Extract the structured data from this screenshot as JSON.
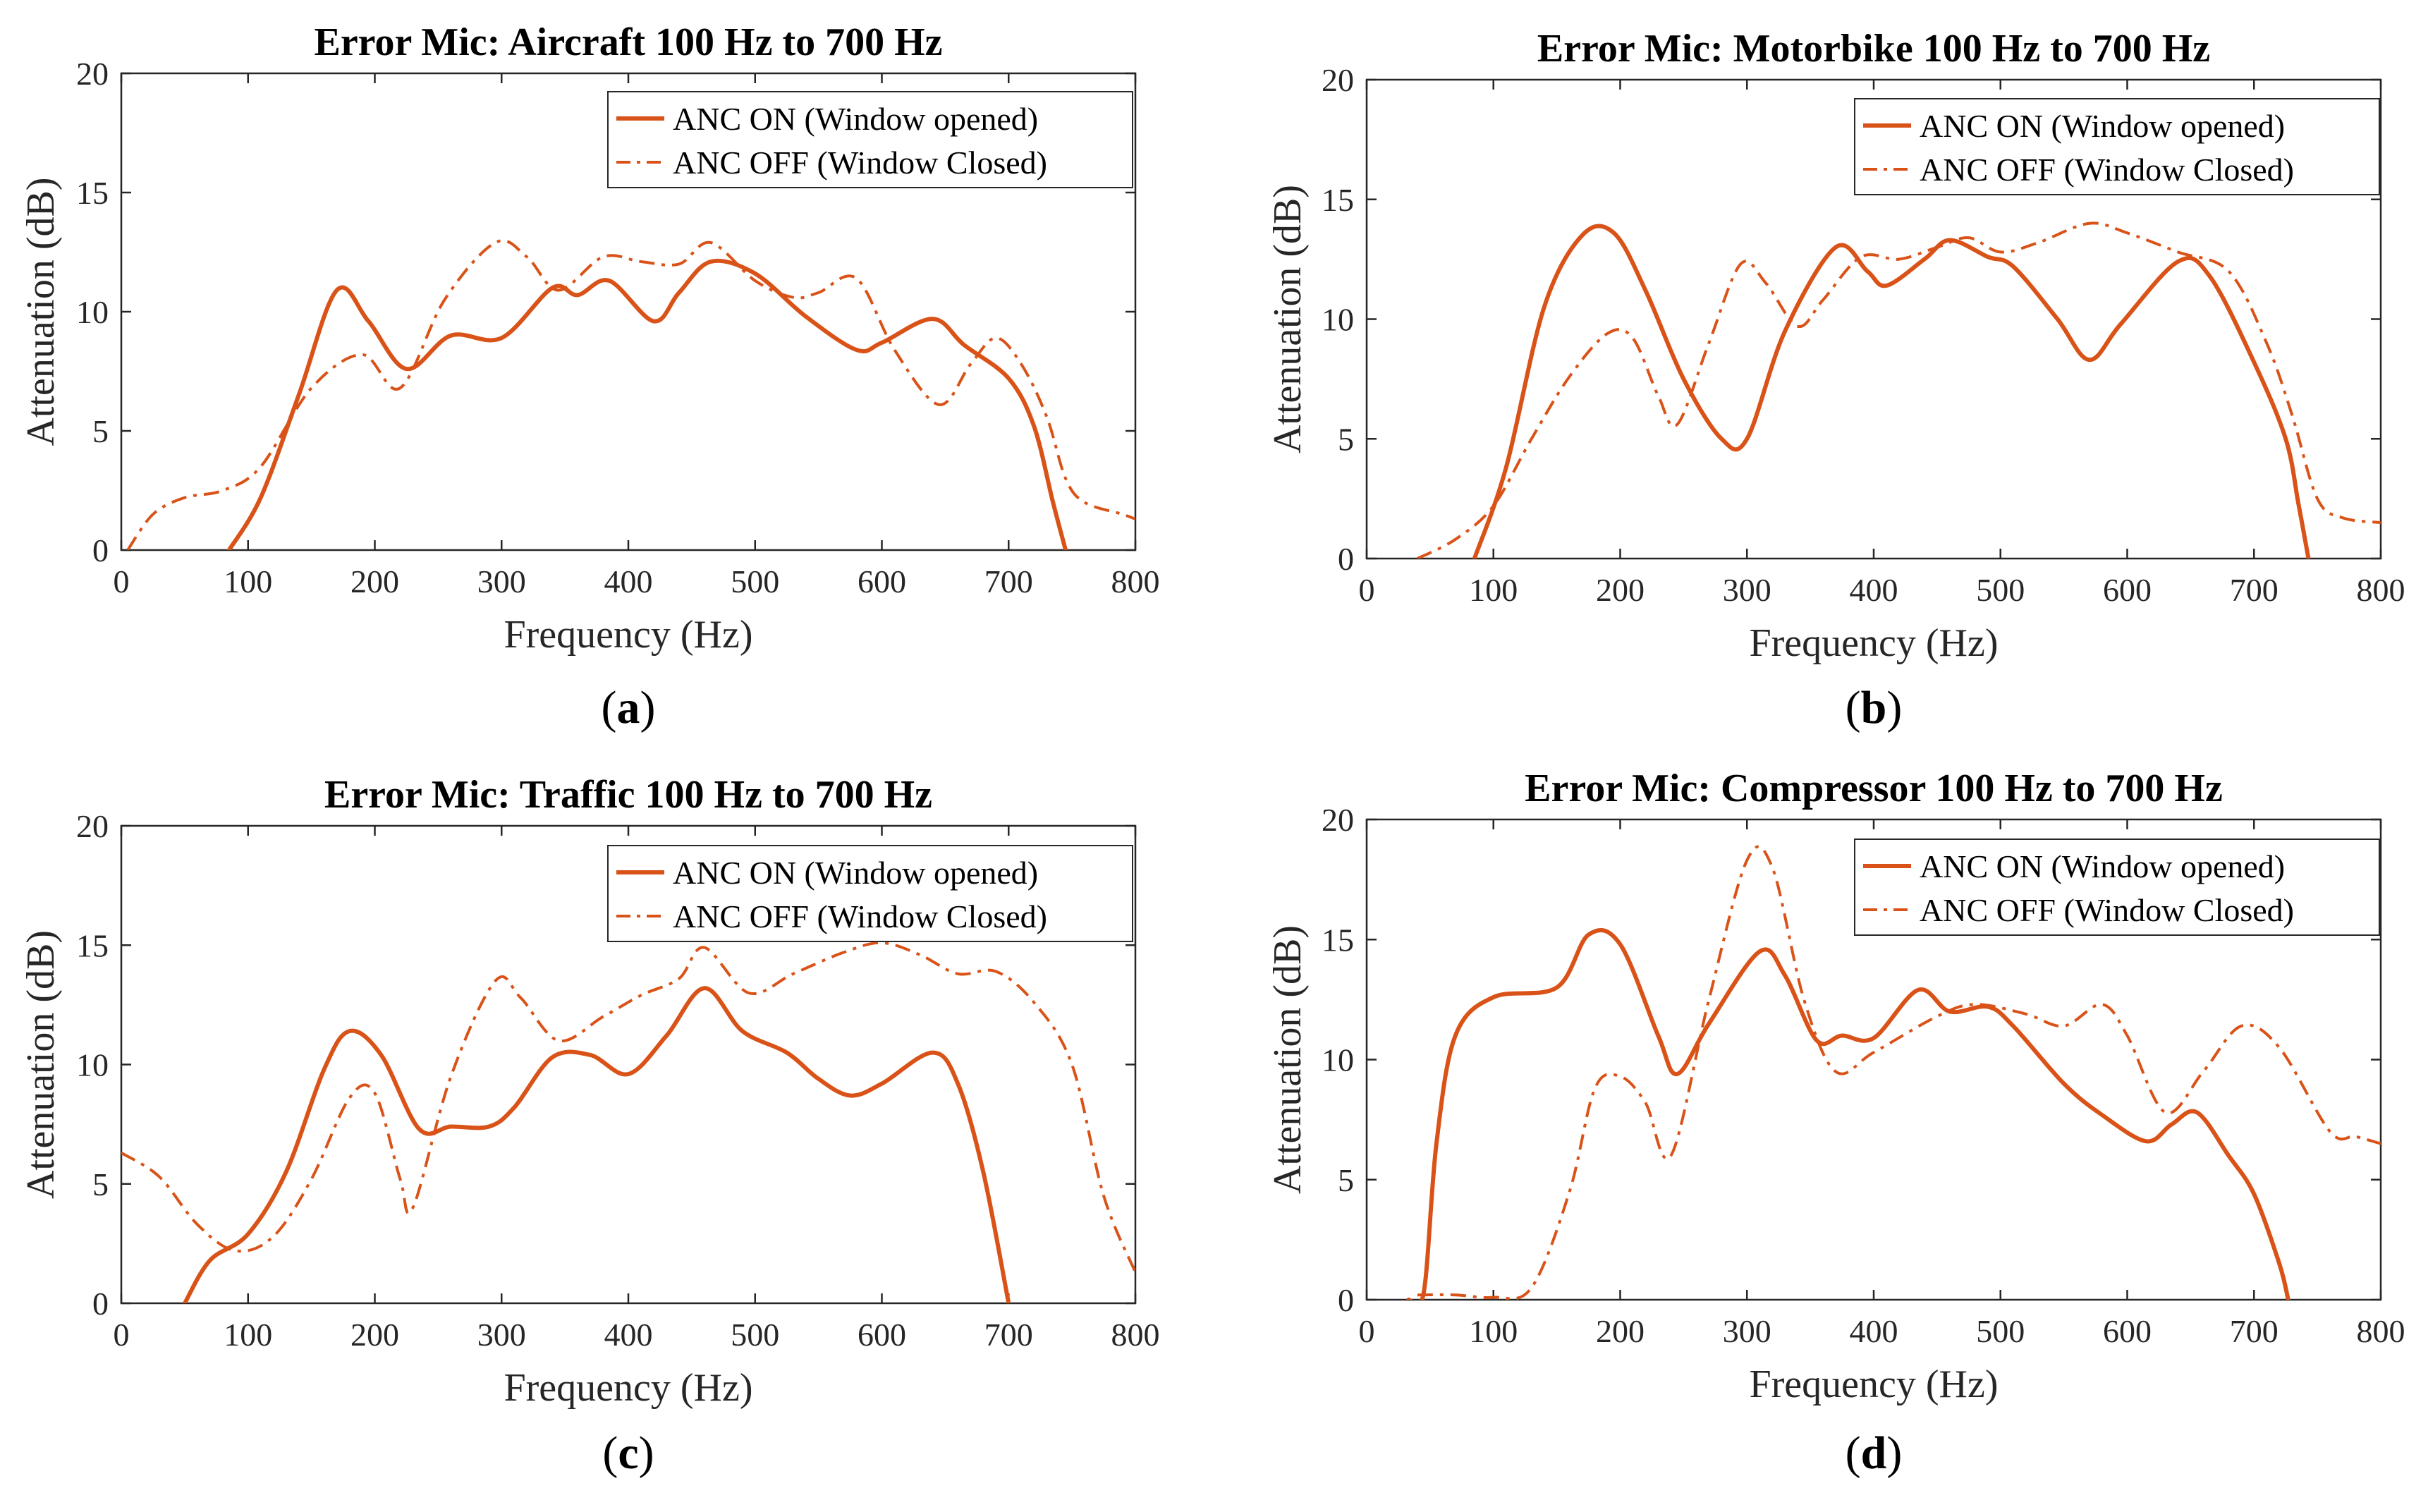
{
  "colors": {
    "series": "#D95319",
    "axis": "#262626",
    "background": "#FFFFFF"
  },
  "chart_data": [
    {
      "type": "line",
      "panel_label": "a",
      "title": "Error Mic: Aircraft 100 Hz to 700 Hz",
      "xlabel": "Frequency (Hz)",
      "ylabel": "Attenuation (dB)",
      "xlim": [
        0,
        800
      ],
      "ylim": [
        0,
        20
      ],
      "xticks": [
        0,
        100,
        200,
        300,
        400,
        500,
        600,
        700,
        800
      ],
      "yticks": [
        0,
        5,
        10,
        15,
        20
      ],
      "legend_position": "top-right",
      "series": [
        {
          "name": "ANC ON (Window opened)",
          "style": "solid",
          "points": [
            [
              85,
              0
            ],
            [
              110,
              2.2
            ],
            [
              140,
              6.5
            ],
            [
              170,
              10.9
            ],
            [
              195,
              9.6
            ],
            [
              225,
              7.6
            ],
            [
              260,
              9
            ],
            [
              300,
              8.9
            ],
            [
              340,
              11
            ],
            [
              360,
              10.7
            ],
            [
              385,
              11.3
            ],
            [
              420,
              9.6
            ],
            [
              440,
              10.8
            ],
            [
              465,
              12.1
            ],
            [
              500,
              11.6
            ],
            [
              540,
              9.8
            ],
            [
              580,
              8.4
            ],
            [
              600,
              8.7
            ],
            [
              640,
              9.7
            ],
            [
              665,
              8.6
            ],
            [
              700,
              7.2
            ],
            [
              720,
              5.2
            ],
            [
              735,
              2
            ],
            [
              745,
              0
            ]
          ]
        },
        {
          "name": "ANC OFF (Window Closed)",
          "style": "dashdot",
          "points": [
            [
              5,
              0
            ],
            [
              25,
              1.5
            ],
            [
              50,
              2.2
            ],
            [
              80,
              2.5
            ],
            [
              110,
              3.5
            ],
            [
              150,
              6.8
            ],
            [
              190,
              8.2
            ],
            [
              220,
              6.8
            ],
            [
              255,
              10.5
            ],
            [
              295,
              12.9
            ],
            [
              320,
              12.3
            ],
            [
              345,
              10.9
            ],
            [
              380,
              12.3
            ],
            [
              410,
              12.1
            ],
            [
              440,
              12
            ],
            [
              465,
              12.9
            ],
            [
              500,
              11.3
            ],
            [
              530,
              10.6
            ],
            [
              550,
              10.8
            ],
            [
              580,
              11.4
            ],
            [
              610,
              8.4
            ],
            [
              645,
              6.1
            ],
            [
              670,
              7.8
            ],
            [
              690,
              8.9
            ],
            [
              710,
              7.8
            ],
            [
              730,
              5.6
            ],
            [
              745,
              3
            ],
            [
              760,
              2
            ],
            [
              790,
              1.5
            ],
            [
              800,
              1.3
            ]
          ]
        }
      ]
    },
    {
      "type": "line",
      "panel_label": "b",
      "title": "Error Mic: Motorbike 100 Hz to 700 Hz",
      "xlabel": "Frequency (Hz)",
      "ylabel": "Attenuation (dB)",
      "xlim": [
        0,
        800
      ],
      "ylim": [
        0,
        20
      ],
      "xticks": [
        0,
        100,
        200,
        300,
        400,
        500,
        600,
        700,
        800
      ],
      "yticks": [
        0,
        5,
        10,
        15,
        20
      ],
      "legend_position": "top-right",
      "series": [
        {
          "name": "ANC ON (Window opened)",
          "style": "solid",
          "points": [
            [
              85,
              0
            ],
            [
              110,
              3.8
            ],
            [
              140,
              10.5
            ],
            [
              170,
              13.5
            ],
            [
              195,
              13.6
            ],
            [
              220,
              11.2
            ],
            [
              250,
              7.5
            ],
            [
              280,
              5
            ],
            [
              300,
              5
            ],
            [
              330,
              9.5
            ],
            [
              370,
              13
            ],
            [
              395,
              12
            ],
            [
              410,
              11.4
            ],
            [
              440,
              12.5
            ],
            [
              460,
              13.3
            ],
            [
              490,
              12.6
            ],
            [
              510,
              12.2
            ],
            [
              545,
              10
            ],
            [
              570,
              8.3
            ],
            [
              595,
              9.8
            ],
            [
              640,
              12.4
            ],
            [
              665,
              11.8
            ],
            [
              700,
              8.2
            ],
            [
              725,
              5
            ],
            [
              735,
              2.3
            ],
            [
              743,
              0
            ]
          ]
        },
        {
          "name": "ANC OFF (Window Closed)",
          "style": "dashdot",
          "points": [
            [
              40,
              0
            ],
            [
              70,
              0.8
            ],
            [
              100,
              2.2
            ],
            [
              130,
              5
            ],
            [
              160,
              7.6
            ],
            [
              190,
              9.4
            ],
            [
              210,
              9.2
            ],
            [
              230,
              6.8
            ],
            [
              245,
              5.6
            ],
            [
              270,
              9
            ],
            [
              295,
              12.3
            ],
            [
              315,
              11.5
            ],
            [
              340,
              9.7
            ],
            [
              360,
              10.8
            ],
            [
              390,
              12.6
            ],
            [
              420,
              12.5
            ],
            [
              450,
              13
            ],
            [
              475,
              13.4
            ],
            [
              500,
              12.8
            ],
            [
              530,
              13.2
            ],
            [
              570,
              14
            ],
            [
              600,
              13.6
            ],
            [
              640,
              12.8
            ],
            [
              680,
              12
            ],
            [
              710,
              9
            ],
            [
              730,
              6
            ],
            [
              750,
              2.5
            ],
            [
              770,
              1.7
            ],
            [
              800,
              1.5
            ]
          ]
        }
      ]
    },
    {
      "type": "line",
      "panel_label": "c",
      "title": "Error Mic: Traffic 100 Hz to 700 Hz",
      "xlabel": "Frequency (Hz)",
      "ylabel": "Attenuation (dB)",
      "xlim": [
        0,
        800
      ],
      "ylim": [
        0,
        20
      ],
      "xticks": [
        0,
        100,
        200,
        300,
        400,
        500,
        600,
        700,
        800
      ],
      "yticks": [
        0,
        5,
        10,
        15,
        20
      ],
      "legend_position": "top-right",
      "series": [
        {
          "name": "ANC ON (Window opened)",
          "style": "solid",
          "points": [
            [
              50,
              0
            ],
            [
              70,
              1.8
            ],
            [
              100,
              2.9
            ],
            [
              130,
              5.5
            ],
            [
              160,
              9.8
            ],
            [
              180,
              11.4
            ],
            [
              205,
              10.4
            ],
            [
              235,
              7.3
            ],
            [
              260,
              7.4
            ],
            [
              290,
              7.4
            ],
            [
              310,
              8.2
            ],
            [
              340,
              10.3
            ],
            [
              370,
              10.4
            ],
            [
              400,
              9.6
            ],
            [
              430,
              11.2
            ],
            [
              460,
              13.2
            ],
            [
              490,
              11.4
            ],
            [
              525,
              10.5
            ],
            [
              550,
              9.4
            ],
            [
              575,
              8.7
            ],
            [
              600,
              9.2
            ],
            [
              640,
              10.5
            ],
            [
              660,
              9.2
            ],
            [
              680,
              5.5
            ],
            [
              700,
              0
            ]
          ]
        },
        {
          "name": "ANC OFF (Window Closed)",
          "style": "dashdot",
          "points": [
            [
              0,
              6.3
            ],
            [
              30,
              5.3
            ],
            [
              60,
              3.3
            ],
            [
              90,
              2.2
            ],
            [
              120,
              2.8
            ],
            [
              150,
              5.2
            ],
            [
              180,
              8.6
            ],
            [
              200,
              8.8
            ],
            [
              220,
              5.2
            ],
            [
              230,
              4
            ],
            [
              260,
              9.5
            ],
            [
              295,
              13.5
            ],
            [
              315,
              12.8
            ],
            [
              345,
              11
            ],
            [
              380,
              12
            ],
            [
              410,
              12.9
            ],
            [
              440,
              13.6
            ],
            [
              460,
              14.9
            ],
            [
              495,
              13
            ],
            [
              530,
              13.8
            ],
            [
              570,
              14.7
            ],
            [
              600,
              15.1
            ],
            [
              630,
              14.6
            ],
            [
              660,
              13.8
            ],
            [
              690,
              13.9
            ],
            [
              720,
              12.6
            ],
            [
              750,
              10
            ],
            [
              775,
              4.5
            ],
            [
              800,
              1.3
            ]
          ]
        }
      ]
    },
    {
      "type": "line",
      "panel_label": "d",
      "title": "Error Mic: Compressor 100 Hz to 700 Hz",
      "xlabel": "Frequency (Hz)",
      "ylabel": "Attenuation (dB)",
      "xlim": [
        0,
        800
      ],
      "ylim": [
        0,
        20
      ],
      "xticks": [
        0,
        100,
        200,
        300,
        400,
        500,
        600,
        700,
        800
      ],
      "yticks": [
        0,
        5,
        10,
        15,
        20
      ],
      "legend_position": "top-right",
      "series": [
        {
          "name": "ANC ON (Window opened)",
          "style": "solid",
          "points": [
            [
              33,
              0
            ],
            [
              45,
              0.3
            ],
            [
              55,
              6.5
            ],
            [
              70,
              11
            ],
            [
              100,
              12.6
            ],
            [
              150,
              13
            ],
            [
              175,
              15.2
            ],
            [
              200,
              14.8
            ],
            [
              230,
              11
            ],
            [
              245,
              9.4
            ],
            [
              270,
              11.5
            ],
            [
              310,
              14.5
            ],
            [
              330,
              13.5
            ],
            [
              355,
              10.8
            ],
            [
              375,
              11
            ],
            [
              400,
              10.9
            ],
            [
              435,
              12.9
            ],
            [
              460,
              12
            ],
            [
              490,
              12.2
            ],
            [
              510,
              11.4
            ],
            [
              550,
              9
            ],
            [
              580,
              7.7
            ],
            [
              615,
              6.6
            ],
            [
              635,
              7.3
            ],
            [
              655,
              7.8
            ],
            [
              680,
              6
            ],
            [
              700,
              4.4
            ],
            [
              720,
              1.5
            ],
            [
              727,
              0
            ]
          ]
        },
        {
          "name": "ANC OFF (Window Closed)",
          "style": "dashdot",
          "points": [
            [
              40,
              0.2
            ],
            [
              70,
              0.2
            ],
            [
              100,
              0.1
            ],
            [
              130,
              0.5
            ],
            [
              160,
              4.5
            ],
            [
              180,
              8.8
            ],
            [
              200,
              9.3
            ],
            [
              220,
              8.2
            ],
            [
              240,
              6
            ],
            [
              270,
              12.5
            ],
            [
              300,
              18.3
            ],
            [
              320,
              18
            ],
            [
              345,
              12.5
            ],
            [
              370,
              9.5
            ],
            [
              400,
              10.3
            ],
            [
              450,
              11.8
            ],
            [
              480,
              12.3
            ],
            [
              520,
              11.9
            ],
            [
              550,
              11.4
            ],
            [
              580,
              12.3
            ],
            [
              600,
              11
            ],
            [
              630,
              7.8
            ],
            [
              660,
              9.5
            ],
            [
              690,
              11.4
            ],
            [
              720,
              10.5
            ],
            [
              760,
              7
            ],
            [
              780,
              6.8
            ],
            [
              800,
              6.5
            ]
          ]
        }
      ]
    }
  ]
}
